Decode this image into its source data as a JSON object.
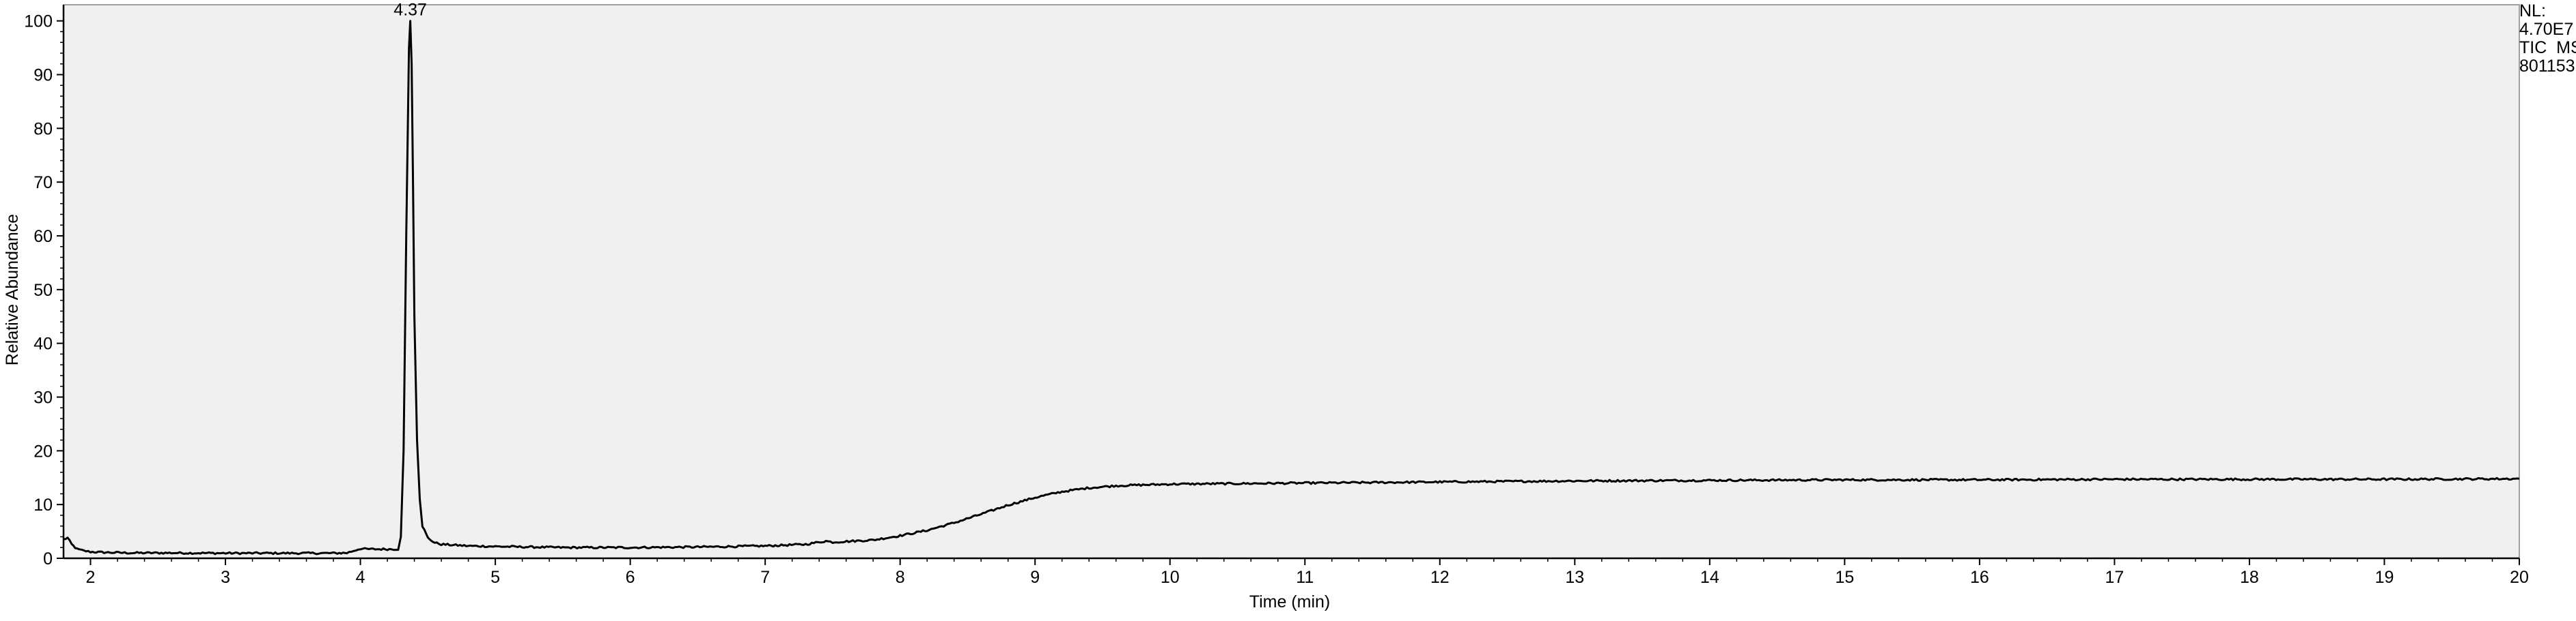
{
  "chart_data": {
    "type": "line",
    "xlabel": "Time (min)",
    "ylabel": "Relative Abundance",
    "xlim": [
      1.8,
      20
    ],
    "ylim": [
      0,
      100
    ],
    "x_ticks": [
      "2",
      "3",
      "4",
      "5",
      "6",
      "7",
      "8",
      "9",
      "10",
      "11",
      "12",
      "13",
      "14",
      "15",
      "16",
      "17",
      "18",
      "19",
      "20"
    ],
    "y_ticks": [
      "0",
      "10",
      "20",
      "30",
      "40",
      "50",
      "60",
      "70",
      "80",
      "90",
      "100"
    ],
    "peak_labels": [
      {
        "x": 4.37,
        "y": 100,
        "label": "4.37"
      }
    ],
    "info_lines": [
      "NL:",
      "4.70E7",
      "TIC  MS",
      "801153"
    ],
    "colors": {
      "plot_background": "#f0f0f0",
      "trace": "#000000",
      "axis": "#000000"
    },
    "series": [
      {
        "points": [
          [
            1.8,
            3.5
          ],
          [
            1.83,
            3.8
          ],
          [
            1.86,
            2.6
          ],
          [
            1.9,
            1.7
          ],
          [
            1.95,
            1.4
          ],
          [
            2.0,
            1.2
          ],
          [
            2.1,
            1.1
          ],
          [
            2.3,
            1.0
          ],
          [
            2.6,
            1.0
          ],
          [
            3.0,
            0.95
          ],
          [
            3.4,
            0.95
          ],
          [
            3.8,
            0.95
          ],
          [
            3.9,
            1.0
          ],
          [
            3.95,
            1.4
          ],
          [
            4.0,
            1.8
          ],
          [
            4.05,
            1.7
          ],
          [
            4.2,
            1.7
          ],
          [
            4.28,
            1.7
          ],
          [
            4.3,
            4.0
          ],
          [
            4.32,
            20.0
          ],
          [
            4.34,
            60.0
          ],
          [
            4.36,
            95.0
          ],
          [
            4.37,
            100.0
          ],
          [
            4.38,
            92.0
          ],
          [
            4.39,
            70.0
          ],
          [
            4.4,
            45.0
          ],
          [
            4.42,
            22.0
          ],
          [
            4.44,
            11.0
          ],
          [
            4.46,
            6.0
          ],
          [
            4.5,
            3.8
          ],
          [
            4.55,
            2.9
          ],
          [
            4.6,
            2.6
          ],
          [
            4.8,
            2.3
          ],
          [
            5.0,
            2.2
          ],
          [
            5.5,
            2.0
          ],
          [
            6.0,
            2.0
          ],
          [
            6.5,
            2.1
          ],
          [
            7.0,
            2.3
          ],
          [
            7.3,
            2.6
          ],
          [
            7.45,
            3.2
          ],
          [
            7.5,
            3.0
          ],
          [
            7.8,
            3.4
          ],
          [
            8.0,
            4.2
          ],
          [
            8.2,
            5.2
          ],
          [
            8.4,
            6.6
          ],
          [
            8.6,
            8.2
          ],
          [
            8.8,
            9.9
          ],
          [
            9.0,
            11.3
          ],
          [
            9.2,
            12.4
          ],
          [
            9.4,
            13.1
          ],
          [
            9.6,
            13.5
          ],
          [
            10.0,
            13.8
          ],
          [
            11.0,
            14.0
          ],
          [
            12.0,
            14.2
          ],
          [
            13.0,
            14.4
          ],
          [
            14.0,
            14.5
          ],
          [
            15.0,
            14.6
          ],
          [
            16.0,
            14.6
          ],
          [
            17.0,
            14.7
          ],
          [
            18.0,
            14.7
          ],
          [
            19.0,
            14.7
          ],
          [
            20.0,
            14.8
          ]
        ]
      }
    ]
  }
}
